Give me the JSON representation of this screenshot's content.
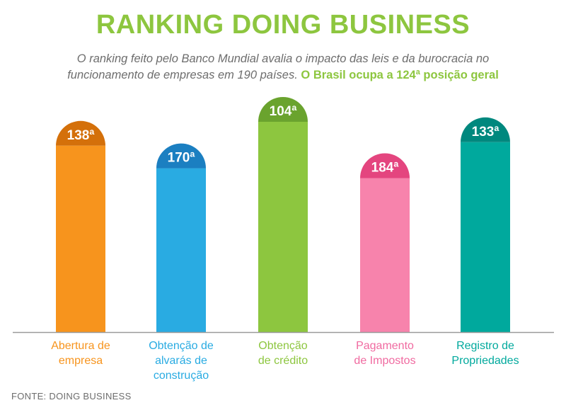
{
  "header": {
    "title": "RANKING DOING BUSINESS",
    "subtitle": "O ranking feito pelo Banco Mundial avalia o impacto das leis e da burocracia no funcionamento de empresas em 190 países.",
    "highlight": "O Brasil ocupa a 124ª posição geral"
  },
  "footer": {
    "source": "FONTE: DOING BUSINESS"
  },
  "colors": {
    "title": "#8dc63f",
    "subtitle": "#6d6d6d",
    "axis": "#9a9a9a"
  },
  "chart_data": {
    "type": "bar",
    "orientation": "vertical",
    "inverted_rank_scale": true,
    "categories": [
      "Abertura de empresa",
      "Obtenção de alvarás de construção",
      "Obtenção de crédito",
      "Pagamento de Impostos",
      "Registro de Propriedades"
    ],
    "category_lines": [
      [
        "Abertura de",
        "empresa"
      ],
      [
        "Obtenção de",
        "alvarás de",
        "construção"
      ],
      [
        "Obtenção",
        "de crédito"
      ],
      [
        "Pagamento",
        "de Impostos"
      ],
      [
        "Registro de",
        "Propriedades"
      ]
    ],
    "values": [
      138,
      170,
      104,
      184,
      133
    ],
    "value_labels": [
      "138ª",
      "170ª",
      "104ª",
      "184ª",
      "133ª"
    ],
    "bar_colors": [
      "#f7941d",
      "#29abe2",
      "#8dc63f",
      "#f783ac",
      "#00a99d"
    ],
    "cap_colors": [
      "#d4700a",
      "#1b7fc1",
      "#6aa32e",
      "#e4457f",
      "#00887e"
    ],
    "label_colors": [
      "#f7941d",
      "#29abe2",
      "#8dc63f",
      "#f06aa0",
      "#00a99d"
    ],
    "grid": false,
    "legend": "none"
  }
}
